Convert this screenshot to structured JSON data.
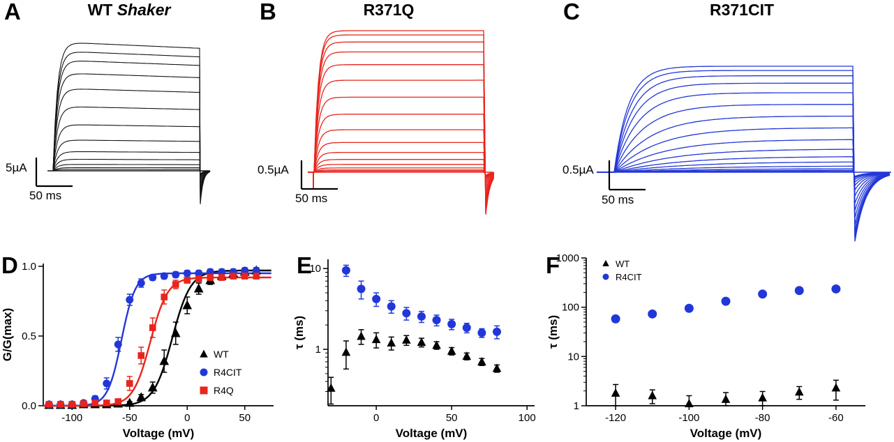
{
  "panels": {
    "A": {
      "label": "A",
      "title_prefix": "WT ",
      "title_italic": "Shaker",
      "scale_current": "5µA",
      "scale_time": "50 ms"
    },
    "B": {
      "label": "B",
      "title": "R371Q",
      "scale_current": "0.5µA",
      "scale_time": "50 ms"
    },
    "C": {
      "label": "C",
      "title": "R371CIT",
      "scale_current": "0.5µA",
      "scale_time": "50 ms"
    },
    "D": {
      "label": "D"
    },
    "E": {
      "label": "E"
    },
    "F": {
      "label": "F"
    }
  },
  "chart_data": [
    {
      "panel": "A",
      "type": "line",
      "kind": "voltage_clamp_current_traces",
      "title": "WT Shaker",
      "color": "#141414",
      "scale_current": "5µA",
      "scale_time": "50 ms",
      "amps_rel": [
        0.012,
        0.025,
        0.05,
        0.09,
        0.15,
        0.24,
        0.36,
        0.5,
        0.64,
        0.76,
        0.86,
        0.93,
        1.0
      ],
      "tau_rel": 0.03,
      "droop": 0.05,
      "tail": "fast",
      "tail_depth": 0.25,
      "tail_rec": 4,
      "onset_spike": false
    },
    {
      "panel": "B",
      "type": "line",
      "kind": "voltage_clamp_current_traces",
      "title": "R371Q",
      "color": "#e8251d",
      "scale_current": "0.5µA",
      "scale_time": "50 ms",
      "amps_rel": [
        0.008,
        0.016,
        0.03,
        0.055,
        0.09,
        0.14,
        0.21,
        0.3,
        0.41,
        0.53,
        0.65,
        0.76,
        0.85,
        0.92,
        0.97,
        1.0
      ],
      "tau_rel": 0.025,
      "droop": 0.0,
      "tail": "fast",
      "tail_depth": 0.28,
      "tail_rec": 6,
      "onset_spike": true
    },
    {
      "panel": "C",
      "type": "line",
      "kind": "voltage_clamp_current_traces_slow_gating",
      "title": "R371CIT",
      "color": "#2237d8",
      "scale_current": "0.5µA",
      "scale_time": "50 ms",
      "amps_rel": [
        0.01,
        0.02,
        0.035,
        0.06,
        0.1,
        0.15,
        0.22,
        0.31,
        0.42,
        0.53,
        0.64,
        0.75,
        0.84,
        0.91,
        0.96,
        1.0
      ],
      "taus_rel": [
        0.4,
        0.38,
        0.36,
        0.33,
        0.3,
        0.27,
        0.24,
        0.21,
        0.18,
        0.15,
        0.12,
        0.1,
        0.085,
        0.075,
        0.065,
        0.06
      ],
      "droop": 0.0,
      "tail": "slow",
      "tail_depth": 0.62,
      "tail_rec": 16,
      "onset_spike": false
    },
    {
      "panel": "D",
      "type": "scatter",
      "xlabel": "Voltage (mV)",
      "ylabel": "G/G(max)",
      "xlim": [
        -125,
        75
      ],
      "xticks": [
        [
          -100,
          "-100"
        ],
        [
          -50,
          "-50"
        ],
        [
          0,
          "0"
        ],
        [
          50,
          "50"
        ]
      ],
      "ylim": [
        0,
        1.02
      ],
      "yticks": [
        [
          0,
          "0.0"
        ],
        [
          0.5,
          "0.5"
        ],
        [
          1,
          "1.0"
        ]
      ],
      "legend": [
        "WT",
        "R4CIT",
        "R4Q"
      ],
      "series": [
        {
          "name": "WT",
          "marker": "triangle",
          "color": "#000000",
          "fit": {
            "v_half": -13,
            "k": 8,
            "gmax": 0.97
          },
          "points": [
            [
              -120,
              0.005,
              0
            ],
            [
              -110,
              0.005,
              0
            ],
            [
              -100,
              0.005,
              0
            ],
            [
              -90,
              0.01,
              0
            ],
            [
              -80,
              0.01,
              0
            ],
            [
              -70,
              0.01,
              0
            ],
            [
              -60,
              0.015,
              0
            ],
            [
              -50,
              0.02,
              0.01
            ],
            [
              -40,
              0.06,
              0.02
            ],
            [
              -30,
              0.13,
              0.04
            ],
            [
              -20,
              0.32,
              0.08
            ],
            [
              -10,
              0.52,
              0.08
            ],
            [
              0,
              0.72,
              0.06
            ],
            [
              10,
              0.84,
              0.04
            ],
            [
              20,
              0.9,
              0.03
            ],
            [
              30,
              0.93,
              0.02
            ],
            [
              40,
              0.95,
              0.02
            ],
            [
              50,
              0.96,
              0.02
            ],
            [
              60,
              0.97,
              0.02
            ]
          ]
        },
        {
          "name": "R4CIT",
          "marker": "circle",
          "color": "#2237d8",
          "fit": {
            "v_half": -57,
            "k": 6,
            "gmax": 0.95
          },
          "points": [
            [
              -120,
              0.01,
              0
            ],
            [
              -110,
              0.01,
              0
            ],
            [
              -100,
              0.01,
              0
            ],
            [
              -90,
              0.02,
              0
            ],
            [
              -80,
              0.05,
              0.02
            ],
            [
              -70,
              0.16,
              0.04
            ],
            [
              -60,
              0.44,
              0.05
            ],
            [
              -50,
              0.76,
              0.04
            ],
            [
              -40,
              0.88,
              0.03
            ],
            [
              -30,
              0.92,
              0.02
            ],
            [
              -20,
              0.93,
              0.02
            ],
            [
              -10,
              0.94,
              0.02
            ],
            [
              0,
              0.95,
              0.02
            ],
            [
              10,
              0.95,
              0.02
            ],
            [
              20,
              0.96,
              0.02
            ],
            [
              30,
              0.96,
              0.02
            ],
            [
              40,
              0.96,
              0.02
            ],
            [
              50,
              0.97,
              0.02
            ],
            [
              60,
              0.97,
              0.02
            ]
          ]
        },
        {
          "name": "R4Q",
          "marker": "square",
          "color": "#e8251d",
          "fit": {
            "v_half": -32,
            "k": 7.5,
            "gmax": 0.92
          },
          "points": [
            [
              -120,
              0.01,
              0
            ],
            [
              -110,
              0.01,
              0
            ],
            [
              -100,
              0.01,
              0
            ],
            [
              -90,
              0.015,
              0
            ],
            [
              -80,
              0.02,
              0
            ],
            [
              -70,
              0.02,
              0
            ],
            [
              -60,
              0.03,
              0.01
            ],
            [
              -50,
              0.16,
              0.05
            ],
            [
              -40,
              0.36,
              0.06
            ],
            [
              -30,
              0.56,
              0.07
            ],
            [
              -20,
              0.78,
              0.05
            ],
            [
              -10,
              0.87,
              0.03
            ],
            [
              0,
              0.9,
              0.02
            ],
            [
              10,
              0.91,
              0.02
            ],
            [
              20,
              0.92,
              0.02
            ],
            [
              30,
              0.92,
              0.02
            ],
            [
              40,
              0.93,
              0.02
            ],
            [
              50,
              0.93,
              0.02
            ],
            [
              60,
              0.93,
              0.02
            ]
          ]
        }
      ]
    },
    {
      "panel": "E",
      "type": "scatter",
      "xlabel": "Voltage (mV)",
      "ylabel": "τ (ms)",
      "ylog": true,
      "xlim": [
        -32,
        105
      ],
      "xticks": [
        [
          0,
          "0"
        ],
        [
          50,
          "50"
        ],
        [
          100,
          "100"
        ]
      ],
      "ylim": [
        0.2,
        13
      ],
      "yticks": [
        [
          1,
          "1"
        ],
        [
          10,
          "10"
        ]
      ],
      "series": [
        {
          "name": "R4CIT",
          "marker": "circle",
          "color": "#2237d8",
          "points": [
            [
              -20,
              9.5,
              1.5
            ],
            [
              -10,
              5.6,
              1.4
            ],
            [
              0,
              4.2,
              0.8
            ],
            [
              10,
              3.4,
              0.6
            ],
            [
              20,
              2.8,
              0.5
            ],
            [
              30,
              2.55,
              0.4
            ],
            [
              40,
              2.3,
              0.35
            ],
            [
              50,
              2.05,
              0.3
            ],
            [
              60,
              1.85,
              0.25
            ],
            [
              70,
              1.6,
              0.2
            ],
            [
              80,
              1.65,
              0.3
            ]
          ]
        },
        {
          "name": "WT",
          "marker": "triangle",
          "color": "#000000",
          "points": [
            [
              -30,
              0.33,
              0.12
            ],
            [
              -20,
              0.92,
              0.35
            ],
            [
              -10,
              1.45,
              0.3
            ],
            [
              0,
              1.32,
              0.28
            ],
            [
              10,
              1.2,
              0.22
            ],
            [
              20,
              1.3,
              0.18
            ],
            [
              30,
              1.22,
              0.15
            ],
            [
              40,
              1.12,
              0.12
            ],
            [
              50,
              0.95,
              0.1
            ],
            [
              60,
              0.82,
              0.08
            ],
            [
              70,
              0.7,
              0.07
            ],
            [
              80,
              0.58,
              0.06
            ]
          ]
        }
      ]
    },
    {
      "panel": "F",
      "type": "scatter",
      "xlabel": "Voltage (mV)",
      "ylabel": "τ (ms)",
      "ylog": true,
      "xlim": [
        -128,
        -52
      ],
      "xticks": [
        [
          -120,
          "-120"
        ],
        [
          -100,
          "-100"
        ],
        [
          -80,
          "-80"
        ],
        [
          -60,
          "-60"
        ]
      ],
      "ylim": [
        1,
        1000
      ],
      "yticks": [
        [
          1,
          "1"
        ],
        [
          10,
          "10"
        ],
        [
          100,
          "100"
        ],
        [
          1000,
          "1000"
        ]
      ],
      "legend": [
        "WT",
        "R4CIT"
      ],
      "series": [
        {
          "name": "WT",
          "marker": "triangle",
          "color": "#000000",
          "points": [
            [
              -120,
              1.8,
              0.9
            ],
            [
              -110,
              1.6,
              0.5
            ],
            [
              -100,
              1.1,
              0.5
            ],
            [
              -90,
              1.35,
              0.5
            ],
            [
              -80,
              1.45,
              0.5
            ],
            [
              -70,
              1.9,
              0.55
            ],
            [
              -60,
              2.3,
              1.0
            ]
          ]
        },
        {
          "name": "R4CIT",
          "marker": "circle",
          "color": "#2237d8",
          "points": [
            [
              -120,
              58,
              8
            ],
            [
              -110,
              73,
              8
            ],
            [
              -100,
              95,
              9
            ],
            [
              -90,
              132,
              10
            ],
            [
              -80,
              185,
              12
            ],
            [
              -70,
              218,
              14
            ],
            [
              -60,
              235,
              15
            ]
          ]
        }
      ]
    }
  ]
}
